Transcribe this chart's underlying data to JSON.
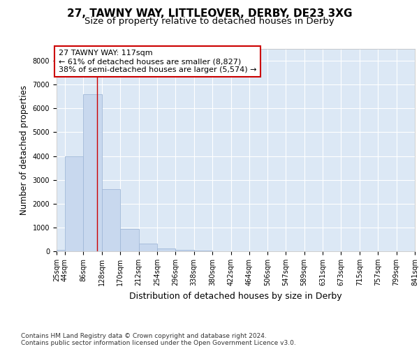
{
  "title": "27, TAWNY WAY, LITTLEOVER, DERBY, DE23 3XG",
  "subtitle": "Size of property relative to detached houses in Derby",
  "xlabel": "Distribution of detached houses by size in Derby",
  "ylabel": "Number of detached properties",
  "footer_line1": "Contains HM Land Registry data © Crown copyright and database right 2024.",
  "footer_line2": "Contains public sector information licensed under the Open Government Licence v3.0.",
  "annotation_title": "27 TAWNY WAY: 117sqm",
  "annotation_line1": "← 61% of detached houses are smaller (8,827)",
  "annotation_line2": "38% of semi-detached houses are larger (5,574) →",
  "property_size": 117,
  "bin_edges": [
    25,
    44,
    86,
    128,
    170,
    212,
    254,
    296,
    338,
    380,
    422,
    464,
    506,
    547,
    589,
    631,
    673,
    715,
    757,
    799,
    841
  ],
  "bin_counts": [
    50,
    4000,
    6600,
    2600,
    950,
    330,
    130,
    50,
    40,
    10,
    5,
    2,
    1,
    0,
    0,
    0,
    0,
    0,
    0,
    0
  ],
  "bar_color": "#c8d8ee",
  "bar_edge_color": "#a0b8d8",
  "vline_color": "#cc0000",
  "annotation_box_color": "#ffffff",
  "annotation_box_edge": "#cc0000",
  "fig_background_color": "#ffffff",
  "plot_bg_color": "#dce8f5",
  "ylim": [
    0,
    8500
  ],
  "yticks": [
    0,
    1000,
    2000,
    3000,
    4000,
    5000,
    6000,
    7000,
    8000
  ],
  "grid_color": "#ffffff",
  "title_fontsize": 11,
  "subtitle_fontsize": 9.5,
  "ylabel_fontsize": 8.5,
  "xlabel_fontsize": 9,
  "tick_fontsize": 7,
  "annotation_fontsize": 8,
  "footer_fontsize": 6.5
}
